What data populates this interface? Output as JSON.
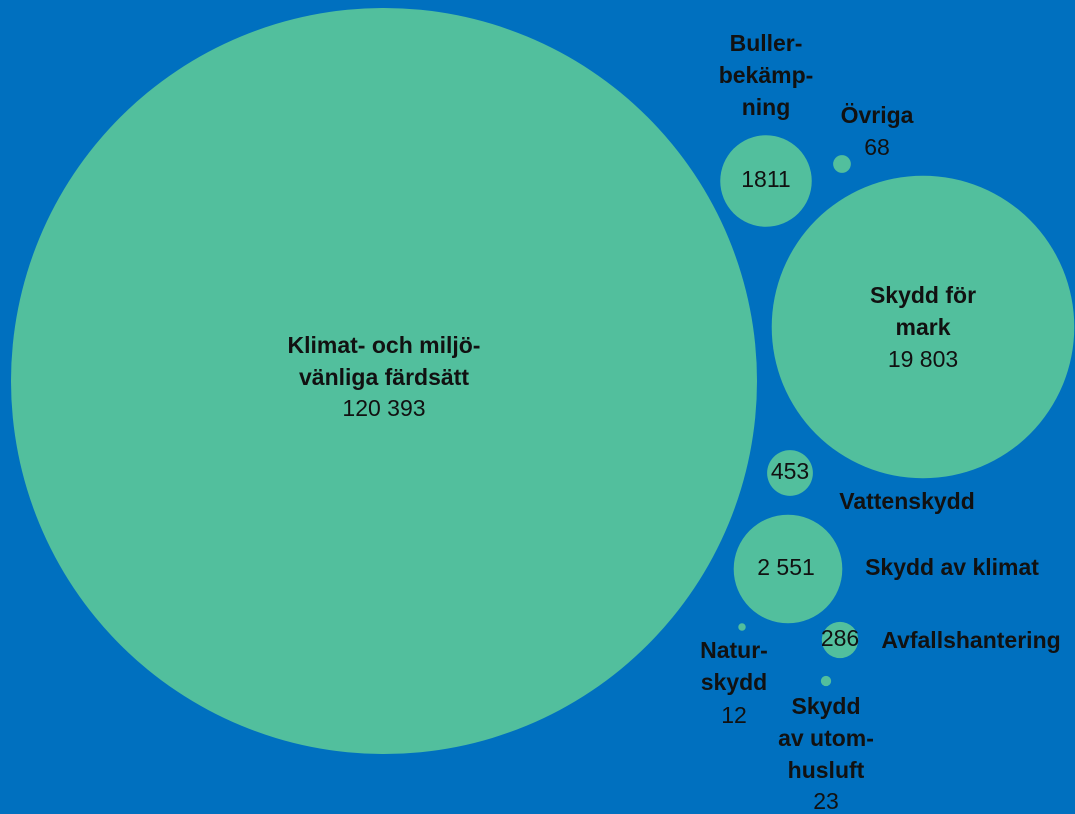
{
  "chart_data": {
    "type": "bubble",
    "labels": [
      [
        "Klimat- och miljö-",
        "vänliga färdsätt"
      ],
      [
        "Buller-",
        "bekämp-",
        "ning"
      ],
      [
        "Övriga"
      ],
      [
        "Skydd för",
        "mark"
      ],
      [
        "Vattenskydd"
      ],
      [
        "Skydd av klimat"
      ],
      [
        "Avfallshantering"
      ],
      [
        "Natur-",
        "skydd"
      ],
      [
        "Skydd",
        "av utom-",
        "husluft"
      ]
    ],
    "values": [
      120393,
      1811,
      68,
      19803,
      453,
      2551,
      286,
      12,
      23
    ],
    "value_labels": [
      "120 393",
      "1811",
      "68",
      "19 803",
      "453",
      "2 551",
      "286",
      "12",
      "23"
    ],
    "color": "#52bf9d",
    "background": "#0070bf"
  }
}
